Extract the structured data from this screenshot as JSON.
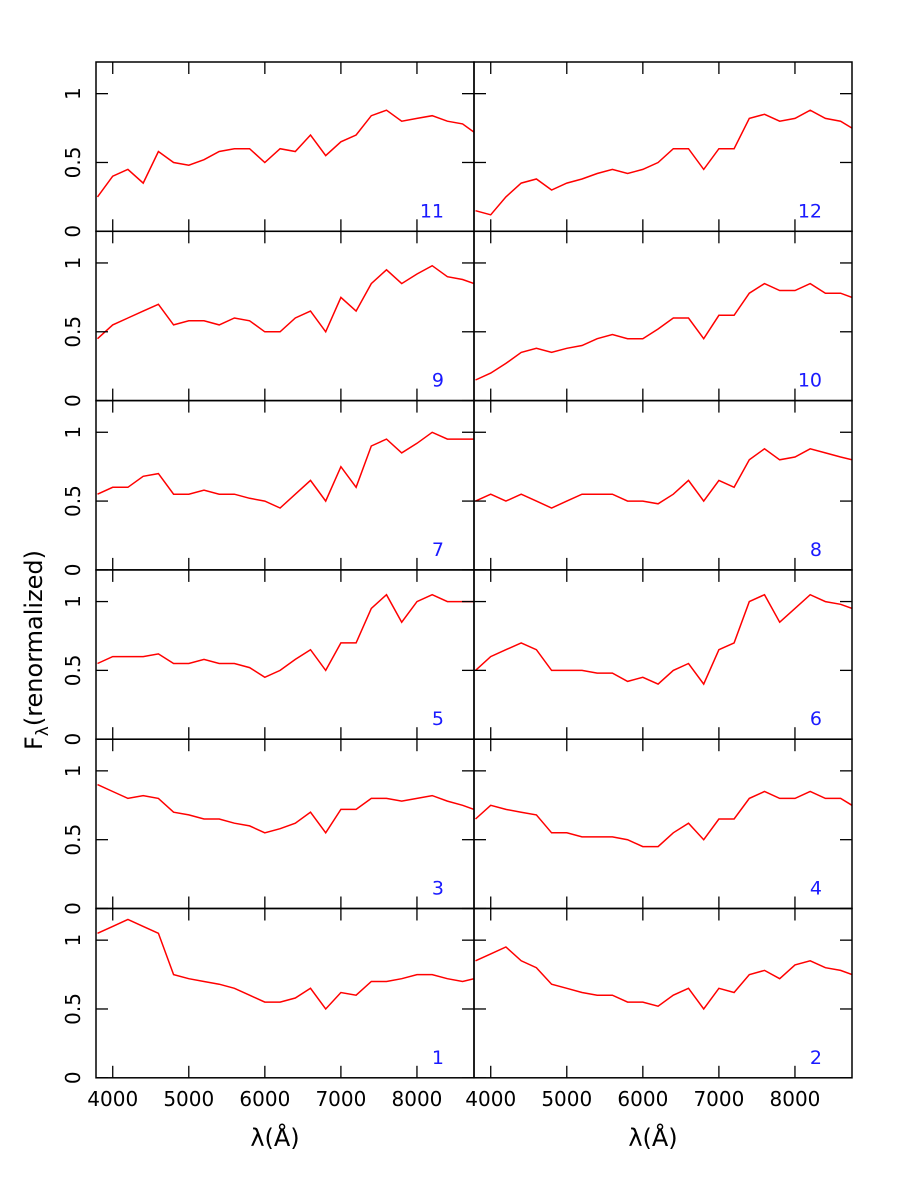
{
  "y_label": {
    "text": "F",
    "subscript": "λ",
    "suffix": "(renormalized)"
  },
  "chart_data": [
    {
      "type": "line",
      "label": "1",
      "x_label": "λ(Å)",
      "x": [
        3800,
        4000,
        4200,
        4400,
        4600,
        4800,
        5000,
        5200,
        5400,
        5600,
        5800,
        6000,
        6200,
        6400,
        6600,
        6800,
        7000,
        7200,
        7400,
        7600,
        7800,
        8000,
        8200,
        8400,
        8600,
        8750
      ],
      "series": [
        {
          "color": "#ff0000",
          "values": [
            1.05,
            1.1,
            1.15,
            1.1,
            1.05,
            0.75,
            0.72,
            0.7,
            0.68,
            0.65,
            0.6,
            0.55,
            0.55,
            0.58,
            0.65,
            0.5,
            0.62,
            0.6,
            0.7,
            0.7,
            0.72,
            0.75,
            0.75,
            0.72,
            0.7,
            0.72
          ]
        }
      ],
      "xlim": [
        3780,
        8750
      ],
      "ylim": [
        0,
        1.23
      ],
      "xticks": [
        4000,
        5000,
        6000,
        7000,
        8000
      ],
      "yticks": [
        0,
        0.5,
        1
      ]
    },
    {
      "type": "line",
      "label": "2",
      "x_label": "λ(Å)",
      "x": [
        3800,
        4000,
        4200,
        4400,
        4600,
        4800,
        5000,
        5200,
        5400,
        5600,
        5800,
        6000,
        6200,
        6400,
        6600,
        6800,
        7000,
        7200,
        7400,
        7600,
        7800,
        8000,
        8200,
        8400,
        8600,
        8750
      ],
      "series": [
        {
          "color": "#ff0000",
          "values": [
            0.85,
            0.9,
            0.95,
            0.85,
            0.8,
            0.68,
            0.65,
            0.62,
            0.6,
            0.6,
            0.55,
            0.55,
            0.52,
            0.6,
            0.65,
            0.5,
            0.65,
            0.62,
            0.75,
            0.78,
            0.72,
            0.82,
            0.85,
            0.8,
            0.78,
            0.75
          ]
        }
      ],
      "xlim": [
        3780,
        8750
      ],
      "ylim": [
        0,
        1.23
      ],
      "xticks": [
        4000,
        5000,
        6000,
        7000,
        8000
      ],
      "yticks": [
        0,
        0.5,
        1
      ]
    },
    {
      "type": "line",
      "label": "3",
      "x": [
        3800,
        4000,
        4200,
        4400,
        4600,
        4800,
        5000,
        5200,
        5400,
        5600,
        5800,
        6000,
        6200,
        6400,
        6600,
        6800,
        7000,
        7200,
        7400,
        7600,
        7800,
        8000,
        8200,
        8400,
        8600,
        8750
      ],
      "series": [
        {
          "color": "#ff0000",
          "values": [
            0.9,
            0.85,
            0.8,
            0.82,
            0.8,
            0.7,
            0.68,
            0.65,
            0.65,
            0.62,
            0.6,
            0.55,
            0.58,
            0.62,
            0.7,
            0.55,
            0.72,
            0.72,
            0.8,
            0.8,
            0.78,
            0.8,
            0.82,
            0.78,
            0.75,
            0.72
          ]
        }
      ],
      "xlim": [
        3780,
        8750
      ],
      "ylim": [
        0,
        1.23
      ],
      "xticks": [
        4000,
        5000,
        6000,
        7000,
        8000
      ],
      "yticks": [
        0,
        0.5,
        1
      ]
    },
    {
      "type": "line",
      "label": "4",
      "x": [
        3800,
        4000,
        4200,
        4400,
        4600,
        4800,
        5000,
        5200,
        5400,
        5600,
        5800,
        6000,
        6200,
        6400,
        6600,
        6800,
        7000,
        7200,
        7400,
        7600,
        7800,
        8000,
        8200,
        8400,
        8600,
        8750
      ],
      "series": [
        {
          "color": "#ff0000",
          "values": [
            0.65,
            0.75,
            0.72,
            0.7,
            0.68,
            0.55,
            0.55,
            0.52,
            0.52,
            0.52,
            0.5,
            0.45,
            0.45,
            0.55,
            0.62,
            0.5,
            0.65,
            0.65,
            0.8,
            0.85,
            0.8,
            0.8,
            0.85,
            0.8,
            0.8,
            0.75
          ]
        }
      ],
      "xlim": [
        3780,
        8750
      ],
      "ylim": [
        0,
        1.23
      ],
      "xticks": [
        4000,
        5000,
        6000,
        7000,
        8000
      ],
      "yticks": [
        0,
        0.5,
        1
      ]
    },
    {
      "type": "line",
      "label": "5",
      "x": [
        3800,
        4000,
        4200,
        4400,
        4600,
        4800,
        5000,
        5200,
        5400,
        5600,
        5800,
        6000,
        6200,
        6400,
        6600,
        6800,
        7000,
        7200,
        7400,
        7600,
        7800,
        8000,
        8200,
        8400,
        8600,
        8750
      ],
      "series": [
        {
          "color": "#ff0000",
          "values": [
            0.55,
            0.6,
            0.6,
            0.6,
            0.62,
            0.55,
            0.55,
            0.58,
            0.55,
            0.55,
            0.52,
            0.45,
            0.5,
            0.58,
            0.65,
            0.5,
            0.7,
            0.7,
            0.95,
            1.05,
            0.85,
            1.0,
            1.05,
            1.0,
            1.0,
            1.0
          ]
        }
      ],
      "xlim": [
        3780,
        8750
      ],
      "ylim": [
        0,
        1.23
      ],
      "xticks": [
        4000,
        5000,
        6000,
        7000,
        8000
      ],
      "yticks": [
        0,
        0.5,
        1
      ]
    },
    {
      "type": "line",
      "label": "6",
      "x": [
        3800,
        4000,
        4200,
        4400,
        4600,
        4800,
        5000,
        5200,
        5400,
        5600,
        5800,
        6000,
        6200,
        6400,
        6600,
        6800,
        7000,
        7200,
        7400,
        7600,
        7800,
        8000,
        8200,
        8400,
        8600,
        8750
      ],
      "series": [
        {
          "color": "#ff0000",
          "values": [
            0.5,
            0.6,
            0.65,
            0.7,
            0.65,
            0.5,
            0.5,
            0.5,
            0.48,
            0.48,
            0.42,
            0.45,
            0.4,
            0.5,
            0.55,
            0.4,
            0.65,
            0.7,
            1.0,
            1.05,
            0.85,
            0.95,
            1.05,
            1.0,
            0.98,
            0.95
          ]
        }
      ],
      "xlim": [
        3780,
        8750
      ],
      "ylim": [
        0,
        1.23
      ],
      "xticks": [
        4000,
        5000,
        6000,
        7000,
        8000
      ],
      "yticks": [
        0,
        0.5,
        1
      ]
    },
    {
      "type": "line",
      "label": "7",
      "x": [
        3800,
        4000,
        4200,
        4400,
        4600,
        4800,
        5000,
        5200,
        5400,
        5600,
        5800,
        6000,
        6200,
        6400,
        6600,
        6800,
        7000,
        7200,
        7400,
        7600,
        7800,
        8000,
        8200,
        8400,
        8600,
        8750
      ],
      "series": [
        {
          "color": "#ff0000",
          "values": [
            0.55,
            0.6,
            0.6,
            0.68,
            0.7,
            0.55,
            0.55,
            0.58,
            0.55,
            0.55,
            0.52,
            0.5,
            0.45,
            0.55,
            0.65,
            0.5,
            0.75,
            0.6,
            0.9,
            0.95,
            0.85,
            0.92,
            1.0,
            0.95,
            0.95,
            0.95
          ]
        }
      ],
      "xlim": [
        3780,
        8750
      ],
      "ylim": [
        0,
        1.23
      ],
      "xticks": [
        4000,
        5000,
        6000,
        7000,
        8000
      ],
      "yticks": [
        0,
        0.5,
        1
      ]
    },
    {
      "type": "line",
      "label": "8",
      "x": [
        3800,
        4000,
        4200,
        4400,
        4600,
        4800,
        5000,
        5200,
        5400,
        5600,
        5800,
        6000,
        6200,
        6400,
        6600,
        6800,
        7000,
        7200,
        7400,
        7600,
        7800,
        8000,
        8200,
        8400,
        8600,
        8750
      ],
      "series": [
        {
          "color": "#ff0000",
          "values": [
            0.5,
            0.55,
            0.5,
            0.55,
            0.5,
            0.45,
            0.5,
            0.55,
            0.55,
            0.55,
            0.5,
            0.5,
            0.48,
            0.55,
            0.65,
            0.5,
            0.65,
            0.6,
            0.8,
            0.88,
            0.8,
            0.82,
            0.88,
            0.85,
            0.82,
            0.8
          ]
        }
      ],
      "xlim": [
        3780,
        8750
      ],
      "ylim": [
        0,
        1.23
      ],
      "xticks": [
        4000,
        5000,
        6000,
        7000,
        8000
      ],
      "yticks": [
        0,
        0.5,
        1
      ]
    },
    {
      "type": "line",
      "label": "9",
      "x": [
        3800,
        4000,
        4200,
        4400,
        4600,
        4800,
        5000,
        5200,
        5400,
        5600,
        5800,
        6000,
        6200,
        6400,
        6600,
        6800,
        7000,
        7200,
        7400,
        7600,
        7800,
        8000,
        8200,
        8400,
        8600,
        8750
      ],
      "series": [
        {
          "color": "#ff0000",
          "values": [
            0.45,
            0.55,
            0.6,
            0.65,
            0.7,
            0.55,
            0.58,
            0.58,
            0.55,
            0.6,
            0.58,
            0.5,
            0.5,
            0.6,
            0.65,
            0.5,
            0.75,
            0.65,
            0.85,
            0.95,
            0.85,
            0.92,
            0.98,
            0.9,
            0.88,
            0.85
          ]
        }
      ],
      "xlim": [
        3780,
        8750
      ],
      "ylim": [
        0,
        1.23
      ],
      "xticks": [
        4000,
        5000,
        6000,
        7000,
        8000
      ],
      "yticks": [
        0,
        0.5,
        1
      ]
    },
    {
      "type": "line",
      "label": "10",
      "x": [
        3800,
        4000,
        4200,
        4400,
        4600,
        4800,
        5000,
        5200,
        5400,
        5600,
        5800,
        6000,
        6200,
        6400,
        6600,
        6800,
        7000,
        7200,
        7400,
        7600,
        7800,
        8000,
        8200,
        8400,
        8600,
        8750
      ],
      "series": [
        {
          "color": "#ff0000",
          "values": [
            0.15,
            0.2,
            0.27,
            0.35,
            0.38,
            0.35,
            0.38,
            0.4,
            0.45,
            0.48,
            0.45,
            0.45,
            0.52,
            0.6,
            0.6,
            0.45,
            0.62,
            0.62,
            0.78,
            0.85,
            0.8,
            0.8,
            0.85,
            0.78,
            0.78,
            0.75
          ]
        }
      ],
      "xlim": [
        3780,
        8750
      ],
      "ylim": [
        0,
        1.23
      ],
      "xticks": [
        4000,
        5000,
        6000,
        7000,
        8000
      ],
      "yticks": [
        0,
        0.5,
        1
      ]
    },
    {
      "type": "line",
      "label": "11",
      "x": [
        3800,
        4000,
        4200,
        4400,
        4600,
        4800,
        5000,
        5200,
        5400,
        5600,
        5800,
        6000,
        6200,
        6400,
        6600,
        6800,
        7000,
        7200,
        7400,
        7600,
        7800,
        8000,
        8200,
        8400,
        8600,
        8750
      ],
      "series": [
        {
          "color": "#ff0000",
          "values": [
            0.25,
            0.4,
            0.45,
            0.35,
            0.58,
            0.5,
            0.48,
            0.52,
            0.58,
            0.6,
            0.6,
            0.5,
            0.6,
            0.58,
            0.7,
            0.55,
            0.65,
            0.7,
            0.84,
            0.88,
            0.8,
            0.82,
            0.84,
            0.8,
            0.78,
            0.72
          ]
        }
      ],
      "xlim": [
        3780,
        8750
      ],
      "ylim": [
        0,
        1.23
      ],
      "xticks": [
        4000,
        5000,
        6000,
        7000,
        8000
      ],
      "yticks": [
        0,
        0.5,
        1
      ]
    },
    {
      "type": "line",
      "label": "12",
      "x": [
        3800,
        4000,
        4200,
        4400,
        4600,
        4800,
        5000,
        5200,
        5400,
        5600,
        5800,
        6000,
        6200,
        6400,
        6600,
        6800,
        7000,
        7200,
        7400,
        7600,
        7800,
        8000,
        8200,
        8400,
        8600,
        8750
      ],
      "series": [
        {
          "color": "#ff0000",
          "values": [
            0.15,
            0.12,
            0.25,
            0.35,
            0.38,
            0.3,
            0.35,
            0.38,
            0.42,
            0.45,
            0.42,
            0.45,
            0.5,
            0.6,
            0.6,
            0.45,
            0.6,
            0.6,
            0.82,
            0.85,
            0.8,
            0.82,
            0.88,
            0.82,
            0.8,
            0.75
          ]
        }
      ],
      "xlim": [
        3780,
        8750
      ],
      "ylim": [
        0,
        1.23
      ],
      "xticks": [
        4000,
        5000,
        6000,
        7000,
        8000
      ],
      "yticks": [
        0,
        0.5,
        1
      ]
    }
  ]
}
